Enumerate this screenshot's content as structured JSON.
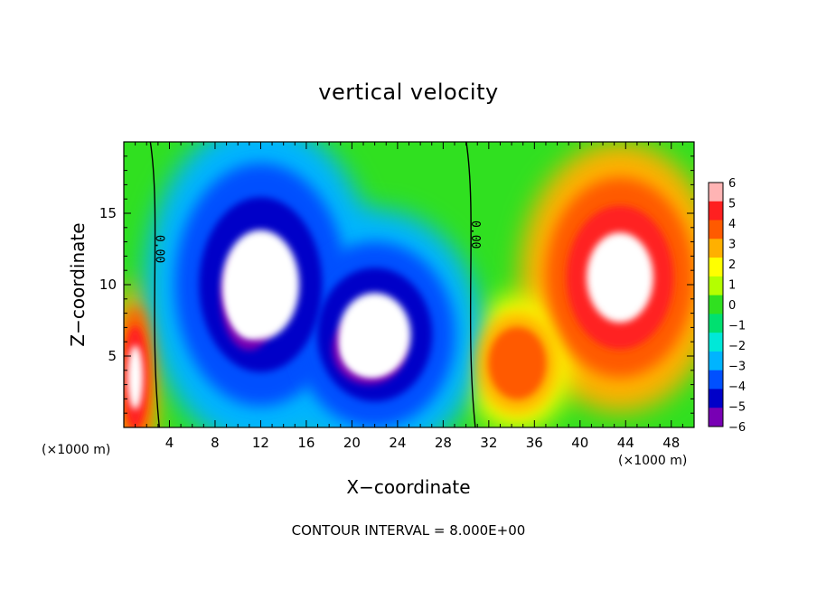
{
  "chart_data": {
    "type": "heatmap",
    "title": "vertical velocity",
    "xlabel": "X−coordinate",
    "ylabel": "Z−coordinate",
    "x_unit_label": "(×1000 m)",
    "footer": "CONTOUR INTERVAL = 8.000E+00",
    "x_ticks": [
      "4",
      "8",
      "12",
      "16",
      "20",
      "24",
      "28",
      "32",
      "36",
      "40",
      "44",
      "48"
    ],
    "x_tick_values": [
      4,
      8,
      12,
      16,
      20,
      24,
      28,
      32,
      36,
      40,
      44,
      48
    ],
    "y_ticks": [
      "5",
      "10",
      "15"
    ],
    "y_tick_values": [
      5,
      10,
      15
    ],
    "xlim": [
      0,
      50
    ],
    "ylim": [
      0,
      20
    ],
    "colorbar": {
      "labels": [
        "6",
        "5",
        "4",
        "3",
        "2",
        "1",
        "0",
        "−1",
        "−2",
        "−3",
        "−4",
        "−5",
        "−6"
      ],
      "values": [
        6,
        5,
        4,
        3,
        2,
        1,
        0,
        -1,
        -2,
        -3,
        -4,
        -5,
        -6
      ],
      "colors": [
        "#ffb4b4",
        "#ff2020",
        "#ff5a00",
        "#ffb000",
        "#ffff00",
        "#b4ff00",
        "#30e020",
        "#00e070",
        "#00e8d8",
        "#00b4ff",
        "#0050ff",
        "#0000c8",
        "#7800b4"
      ]
    },
    "contour_labels": [
      "0.00",
      "0.00"
    ],
    "contour_label_positions": [
      {
        "x": 2.8,
        "y": 12.5
      },
      {
        "x": 30.5,
        "y": 13.5
      }
    ],
    "regions": [
      {
        "kind": "updraft",
        "x": 1.0,
        "y": 3.5,
        "rx": 1.5,
        "ry": 5,
        "value": 5
      },
      {
        "kind": "updraft",
        "x": 43.5,
        "y": 10.5,
        "rx": 6.5,
        "ry": 7,
        "value": 5
      },
      {
        "kind": "updraft",
        "x": 34.5,
        "y": 4.5,
        "rx": 3.5,
        "ry": 3.5,
        "value": 4
      },
      {
        "kind": "downdraft",
        "x": 12.0,
        "y": 10.0,
        "rx": 7.5,
        "ry": 8.5,
        "value": -5
      },
      {
        "kind": "downdraft",
        "x": 22.0,
        "y": 6.5,
        "rx": 7.0,
        "ry": 6.5,
        "value": -5
      },
      {
        "kind": "downdraft-core",
        "x": 11.0,
        "y": 9.0,
        "rx": 3.5,
        "ry": 5.0,
        "value": -6
      },
      {
        "kind": "downdraft-core",
        "x": 21.5,
        "y": 5.5,
        "rx": 4.5,
        "ry": 3.5,
        "value": -6
      }
    ]
  }
}
